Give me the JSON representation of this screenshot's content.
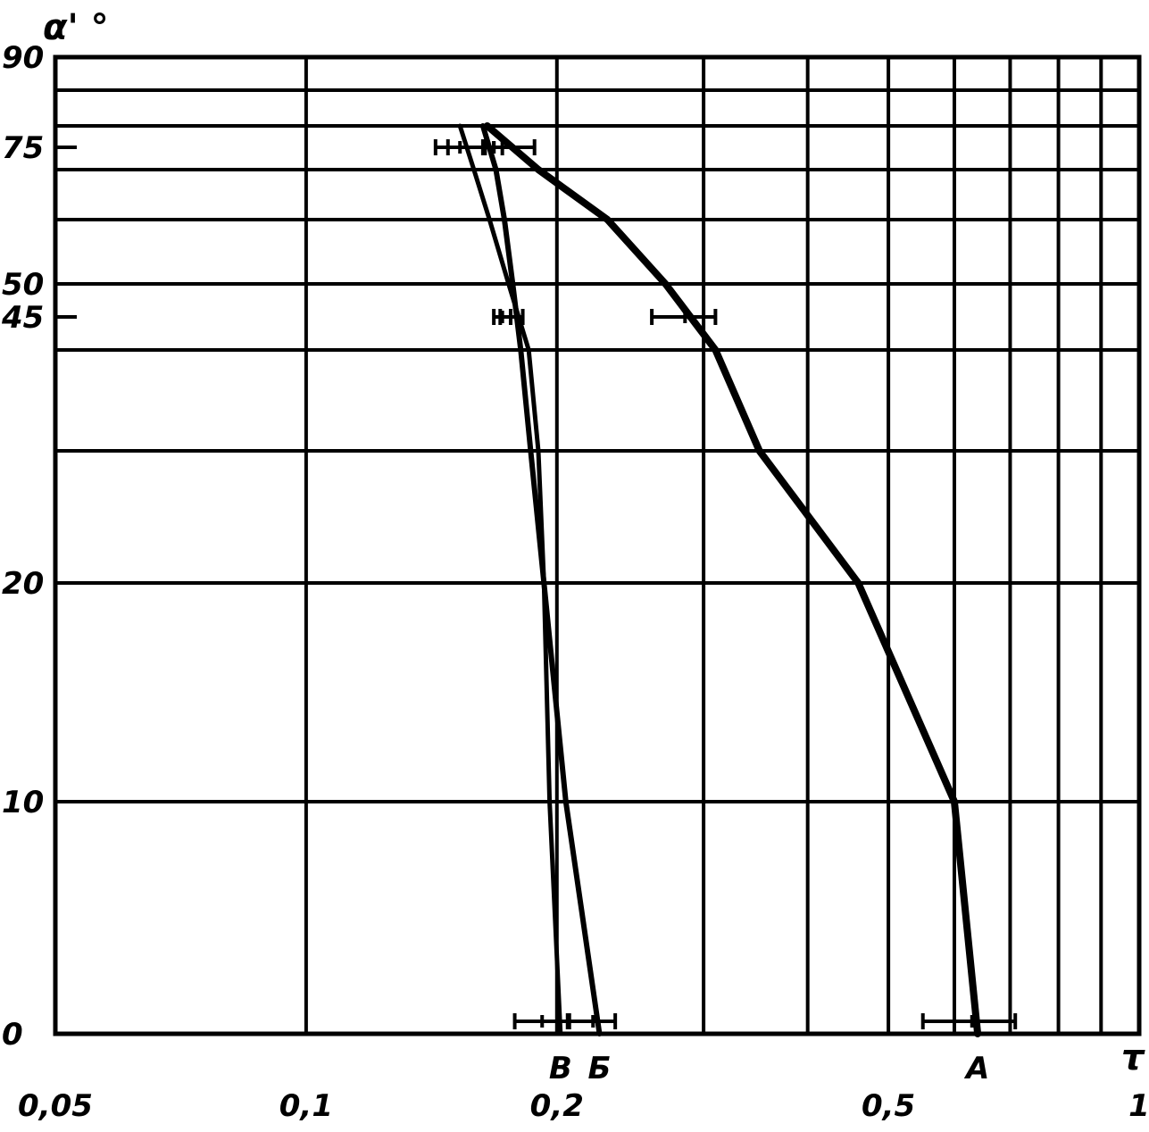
{
  "chart_data": {
    "type": "line",
    "title": "",
    "xlabel": "τ",
    "ylabel": "α' °",
    "x_scale": "log",
    "xlim": [
      0.05,
      1
    ],
    "ylim": [
      0,
      90
    ],
    "grid": true,
    "x_ticks": [
      {
        "value": 0.05,
        "label": "0,05"
      },
      {
        "value": 0.1,
        "label": "0,1"
      },
      {
        "value": 0.2,
        "label": "0,2"
      },
      {
        "value": 0.5,
        "label": "0,5"
      },
      {
        "value": 1,
        "label": "1"
      }
    ],
    "y_ticks": [
      {
        "value": 0,
        "label": "0"
      },
      {
        "value": 10,
        "label": "10"
      },
      {
        "value": 20,
        "label": "20"
      },
      {
        "value": 45,
        "label": "45"
      },
      {
        "value": 50,
        "label": "50"
      },
      {
        "value": 75,
        "label": "75"
      },
      {
        "value": 90,
        "label": "90"
      }
    ],
    "series": [
      {
        "name": "А",
        "points": [
          [
            0.64,
            0
          ],
          [
            0.6,
            10
          ],
          [
            0.46,
            20
          ],
          [
            0.35,
            30
          ],
          [
            0.31,
            40
          ],
          [
            0.27,
            50
          ],
          [
            0.23,
            60
          ],
          [
            0.19,
            70
          ],
          [
            0.165,
            80
          ]
        ],
        "error_bars": [
          {
            "y": 0,
            "x_low": 0.55,
            "x_mid": 0.63,
            "x_high": 0.71
          },
          {
            "y": 45,
            "x_low": 0.26,
            "x_mid": 0.285,
            "x_high": 0.31
          },
          {
            "y": 75,
            "x_low": 0.148,
            "x_mid": 0.168,
            "x_high": 0.188
          }
        ]
      },
      {
        "name": "Б",
        "points": [
          [
            0.225,
            0
          ],
          [
            0.205,
            10
          ],
          [
            0.193,
            20
          ],
          [
            0.186,
            30
          ],
          [
            0.181,
            40
          ],
          [
            0.177,
            50
          ],
          [
            0.173,
            60
          ],
          [
            0.169,
            70
          ],
          [
            0.163,
            80
          ]
        ],
        "error_bars": [
          {
            "y": 0,
            "x_low": 0.207,
            "x_mid": 0.221,
            "x_high": 0.235
          },
          {
            "y": 45,
            "x_low": 0.171,
            "x_mid": 0.176,
            "x_high": 0.182
          },
          {
            "y": 75,
            "x_low": 0.164,
            "x_mid": 0.168,
            "x_high": 0.172
          }
        ]
      },
      {
        "name": "В",
        "points": [
          [
            0.202,
            0
          ],
          [
            0.196,
            10
          ],
          [
            0.193,
            20
          ],
          [
            0.19,
            30
          ],
          [
            0.185,
            40
          ],
          [
            0.175,
            50
          ],
          [
            0.166,
            60
          ],
          [
            0.159,
            70
          ],
          [
            0.153,
            80
          ]
        ],
        "error_bars": [
          {
            "y": 0,
            "x_low": 0.178,
            "x_mid": 0.192,
            "x_high": 0.206
          },
          {
            "y": 45,
            "x_low": 0.168,
            "x_mid": 0.172,
            "x_high": 0.176
          },
          {
            "y": 75,
            "x_low": 0.143,
            "x_mid": 0.153,
            "x_high": 0.163
          }
        ]
      }
    ]
  }
}
